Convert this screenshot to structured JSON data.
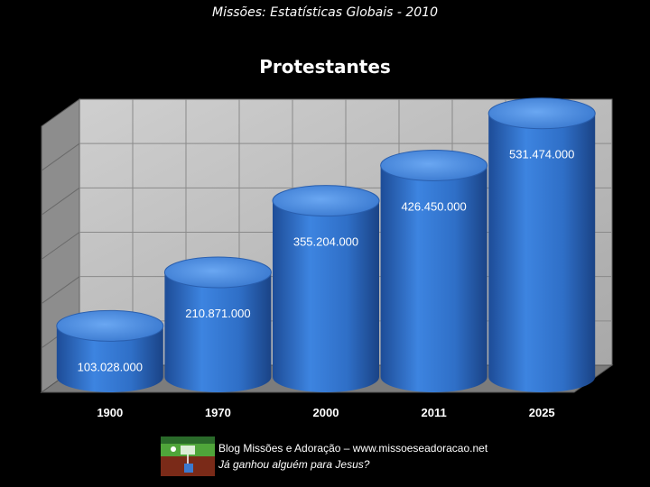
{
  "header": {
    "subtitle": "Missões: Estatísticas Globais - 2010"
  },
  "chart_data": {
    "type": "bar",
    "title": "Protestantes",
    "categories": [
      "1900",
      "1970",
      "2000",
      "2011",
      "2025"
    ],
    "values": [
      103028000,
      210871000,
      355204000,
      426450000,
      531474000
    ],
    "value_labels": [
      "103.028.000",
      "210.871.000",
      "355.204.000",
      "426.450.000",
      "531.474.000"
    ],
    "ylim": [
      0,
      600000000
    ],
    "grid": true,
    "legend": "none",
    "colors": {
      "bar": "#3a7bd5",
      "bar_dark": "#1f4f9a",
      "bar_top": "#5f9bee",
      "wall": "#bfbfbf",
      "floor": "#9a9a9a"
    }
  },
  "footer": {
    "line1": "Blog Missões e Adoração – www.missoeseadoracao.net",
    "line2": "Já ganhou alguém para Jesus?"
  },
  "logo": {
    "icon": "mission-scene-icon"
  }
}
